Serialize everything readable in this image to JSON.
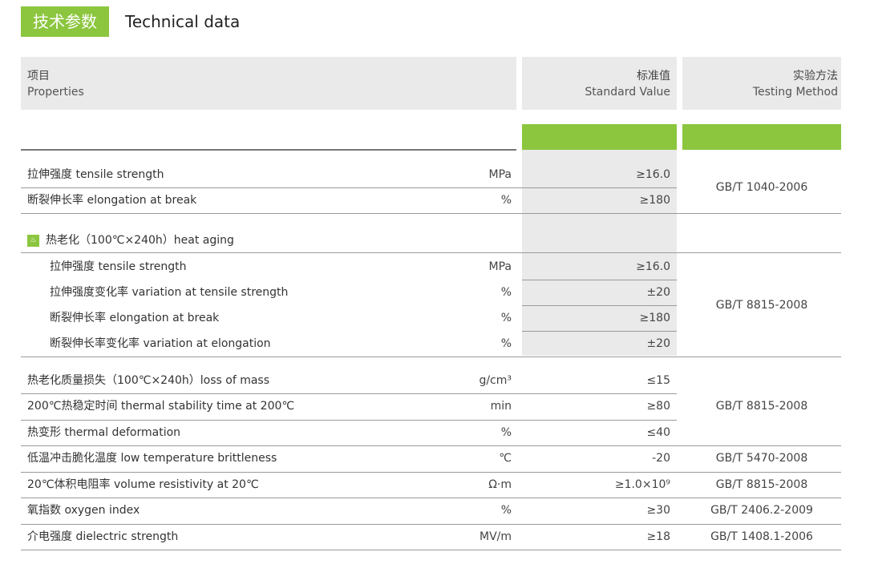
{
  "title": {
    "badge": "技术参数",
    "english": "Technical data"
  },
  "header": {
    "prop_cn": "项目",
    "prop_en": "Properties",
    "std_cn": "标准值",
    "std_en": "Standard Value",
    "test_cn": "实验方法",
    "test_en": "Testing Method"
  },
  "rows": [
    {
      "name": "拉伸强度 tensile strength",
      "unit": "MPa",
      "std": "≥16.0"
    },
    {
      "name": "断裂伸长率 elongation at break",
      "unit": "%",
      "std": "≥180"
    },
    {
      "name": "热老化（100℃×240h）heat aging",
      "unit": "",
      "std": ""
    },
    {
      "name": "拉伸强度 tensile strength",
      "unit": "MPa",
      "std": "≥16.0"
    },
    {
      "name": "拉伸强度变化率 variation at tensile strength",
      "unit": "%",
      "std": "±20"
    },
    {
      "name": "断裂伸长率 elongation at break",
      "unit": "%",
      "std": "≥180"
    },
    {
      "name": "断裂伸长率变化率 variation at elongation",
      "unit": "%",
      "std": "±20"
    },
    {
      "name": "热老化质量损失（100℃×240h）loss of mass",
      "unit": "g/cm³",
      "std": "≤15"
    },
    {
      "name": "200℃热稳定时间 thermal stability time at 200℃",
      "unit": "min",
      "std": "≥80"
    },
    {
      "name": "热变形 thermal deformation",
      "unit": "%",
      "std": "≤40"
    },
    {
      "name": "低温冲击脆化温度 low temperature brittleness",
      "unit": "℃",
      "std": "-20"
    },
    {
      "name": "20℃体积电阻率 volume resistivity at 20℃",
      "unit": "Ω·m",
      "std": "≥1.0×10⁹"
    },
    {
      "name": "氧指数 oxygen index",
      "unit": "%",
      "std": "≥30"
    },
    {
      "name": "介电强度 dielectric strength",
      "unit": "MV/m",
      "std": "≥18"
    }
  ],
  "methods": [
    "GB/T 1040-2006",
    "GB/T 8815-2008",
    "GB/T 8815-2008",
    "GB/T 5470-2008",
    "GB/T 8815-2008",
    "GB/T 2406.2-2009",
    "GB/T 1408.1-2006"
  ],
  "icons": {
    "heat_aging": "heat-icon"
  },
  "colors": {
    "accent": "#8cc63f",
    "header_bg": "#eaeaea"
  }
}
